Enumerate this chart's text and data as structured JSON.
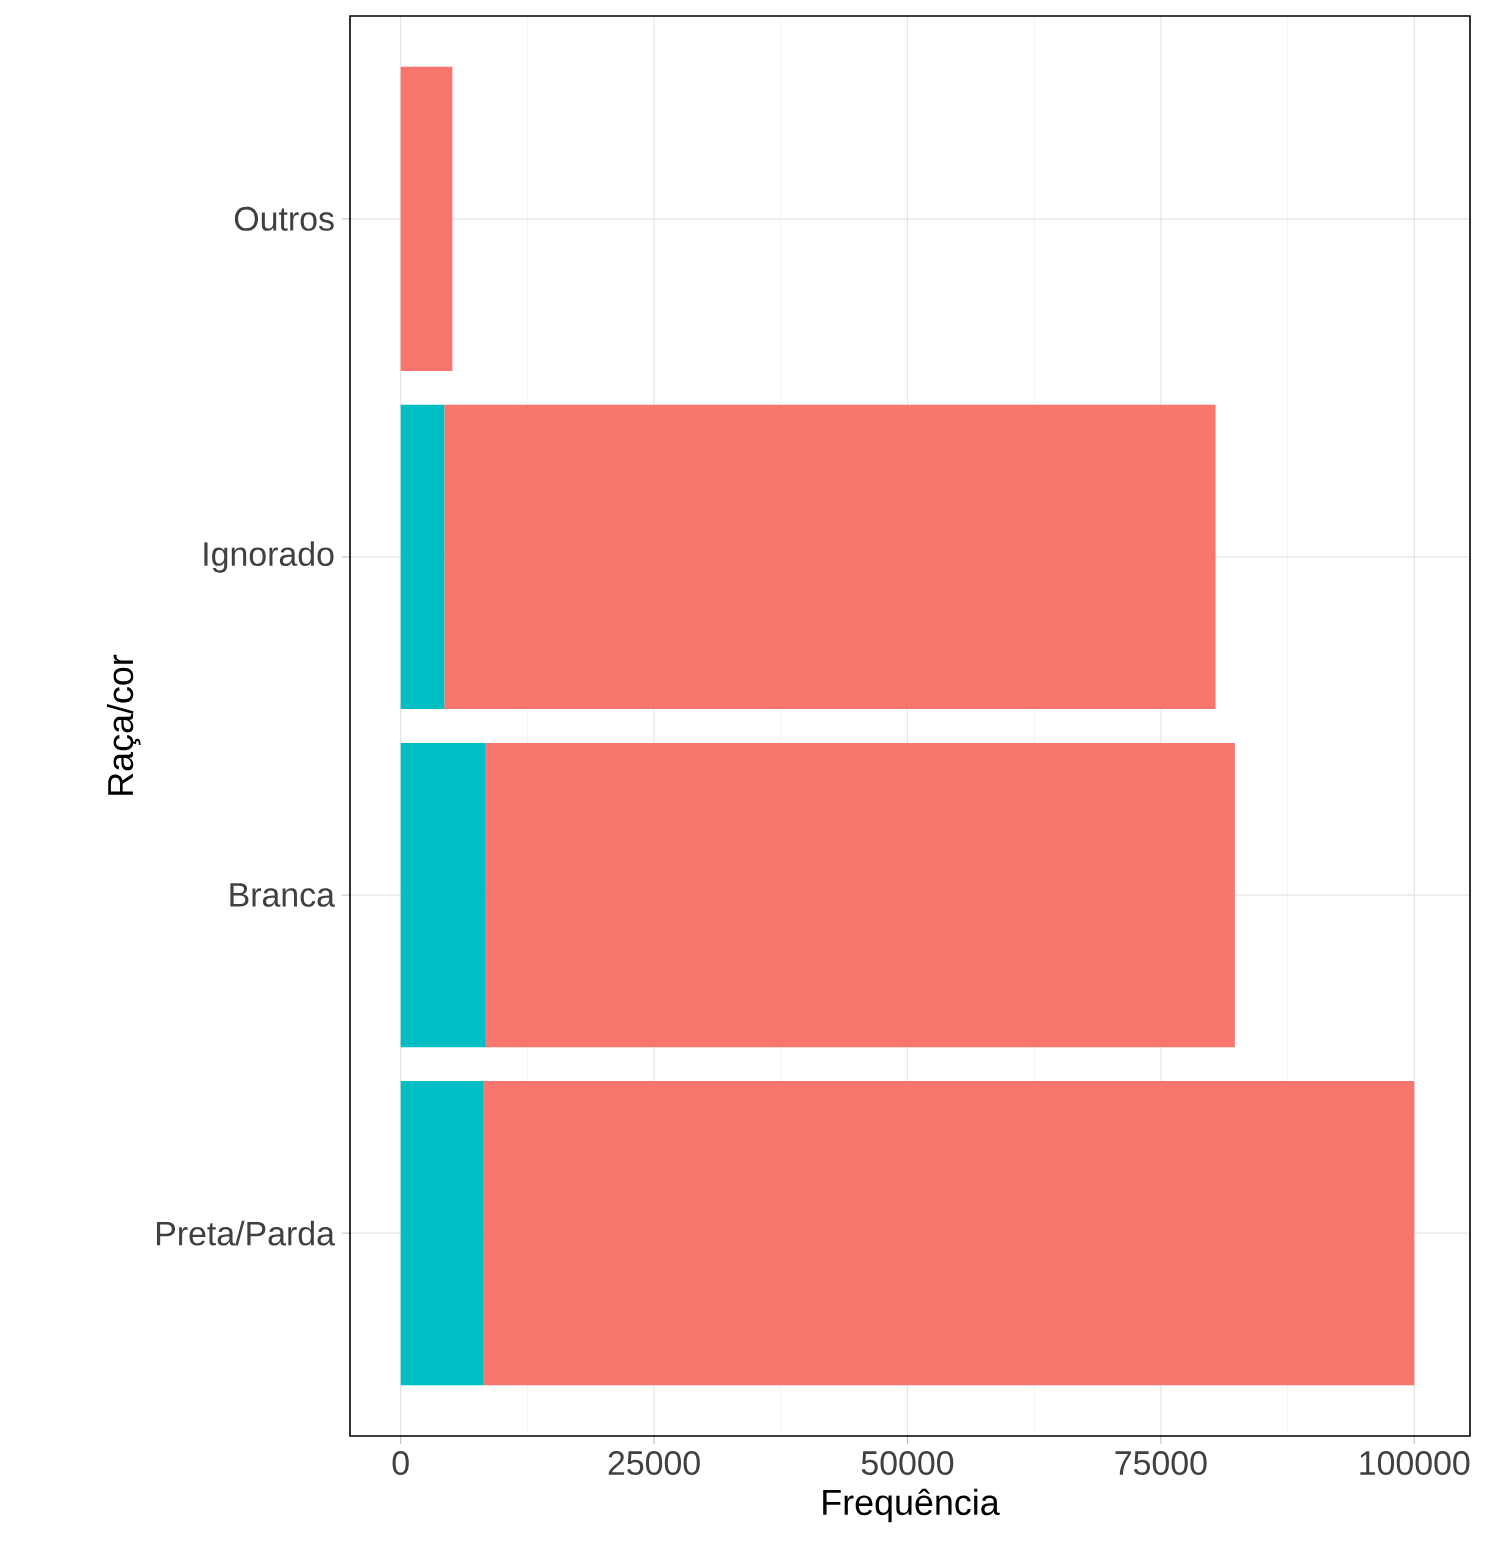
{
  "chart_data": {
    "type": "bar",
    "orientation": "horizontal",
    "stacked": true,
    "xlabel": "Frequência",
    "ylabel": "Raça/cor",
    "categories": [
      "Outros",
      "Ignorado",
      "Branca",
      "Preta/Parda"
    ],
    "series": [
      {
        "color": "#00bfc4",
        "values": [
          null,
          4300,
          8400,
          8200
        ]
      },
      {
        "color": "#f8766d",
        "values": [
          5100,
          76100,
          73900,
          91800
        ]
      }
    ],
    "xlim": [
      -5000,
      105500
    ],
    "xticks": [
      0,
      25000,
      50000,
      75000,
      100000
    ],
    "grid": true
  }
}
